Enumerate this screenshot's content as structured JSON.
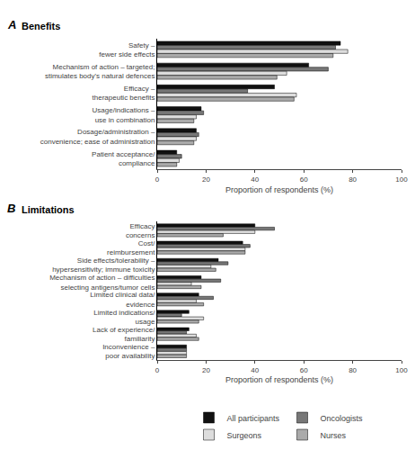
{
  "chart_data": [
    {
      "type": "bar",
      "orientation": "horizontal",
      "title": "Benefits",
      "annotations": [
        "A"
      ],
      "categories": [
        "Safety –\nfewer side effects",
        "Mechanism of action – targeted;\nstimulates body's natural defences",
        "Efficacy –\ntherapeutic benefits",
        "Usage/indications –\nuse in combination",
        "Dosage/administration –\nconvenience; ease of administration",
        "Patient acceptance/\ncompliance"
      ],
      "series": [
        {
          "name": "All participants",
          "color": "#111111",
          "values": [
            75,
            62,
            48,
            18,
            16,
            8
          ]
        },
        {
          "name": "Oncologists",
          "color": "#777777",
          "values": [
            73,
            70,
            37,
            19,
            17,
            10
          ]
        },
        {
          "name": "Surgeons",
          "color": "#dddddd",
          "values": [
            78,
            53,
            57,
            16,
            16,
            9
          ]
        },
        {
          "name": "Nurses",
          "color": "#aaaaaa",
          "values": [
            72,
            49,
            56,
            15,
            15,
            8
          ]
        }
      ],
      "xlabel": "Proportion of respondents (%)",
      "xlim": [
        0,
        100
      ],
      "xticks": [
        0,
        20,
        40,
        60,
        80,
        100
      ],
      "grid": false,
      "legend": "bottom"
    },
    {
      "type": "bar",
      "orientation": "horizontal",
      "title": "Limitations",
      "annotations": [
        "B"
      ],
      "categories": [
        "Efficacy\nconcerns",
        "Cost/\nreimbursement",
        "Side effects/tolerability –\nhypersensitivity; immune toxicity",
        "Mechanism of action – difficulties\nselecting antigens/tumor cells",
        "Limited clinical data/\nevidence",
        "Limited indications/\nusage",
        "Lack of experience/\nfamiliarity",
        "Inconvenience –\npoor availability"
      ],
      "series": [
        {
          "name": "All participants",
          "color": "#111111",
          "values": [
            40,
            35,
            25,
            18,
            17,
            13,
            13,
            12
          ]
        },
        {
          "name": "Oncologists",
          "color": "#777777",
          "values": [
            48,
            38,
            29,
            26,
            23,
            10,
            12,
            12
          ]
        },
        {
          "name": "Surgeons",
          "color": "#dddddd",
          "values": [
            40,
            36,
            22,
            14,
            16,
            19,
            16,
            12
          ]
        },
        {
          "name": "Nurses",
          "color": "#aaaaaa",
          "values": [
            27,
            36,
            24,
            18,
            19,
            17,
            17,
            12
          ]
        }
      ],
      "xlabel": "Proportion of respondents (%)",
      "xlim": [
        0,
        100
      ],
      "xticks": [
        0,
        20,
        40,
        60,
        80,
        100
      ],
      "grid": false,
      "legend": false
    }
  ]
}
